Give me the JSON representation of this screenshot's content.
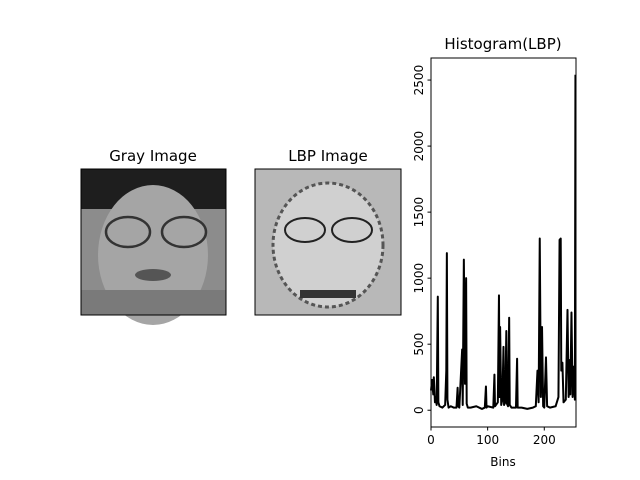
{
  "panels": [
    {
      "title": "Gray Image"
    },
    {
      "title": "LBP Image"
    }
  ],
  "chart_data": {
    "type": "line",
    "title": "Histogram(LBP)",
    "x_label": "Bins",
    "x": [
      0,
      2,
      4,
      5,
      7,
      8,
      10,
      12,
      13,
      15,
      20,
      25,
      27,
      28,
      29,
      31,
      35,
      40,
      45,
      47,
      48,
      50,
      55,
      56,
      58,
      60,
      62,
      63,
      65,
      70,
      80,
      90,
      95,
      97,
      98,
      100,
      110,
      112,
      113,
      118,
      120,
      121,
      122,
      124,
      126,
      128,
      129,
      131,
      133,
      134,
      136,
      138,
      139,
      142,
      150,
      152,
      153,
      160,
      170,
      180,
      185,
      188,
      190,
      192,
      194,
      196,
      198,
      200,
      203,
      205,
      210,
      220,
      225,
      227,
      229,
      230,
      232,
      234,
      238,
      241,
      243,
      244,
      246,
      248,
      250,
      252,
      254,
      255
    ],
    "series": [
      {
        "color": "#000000",
        "values": [
          150,
          230,
          120,
          250,
          60,
          100,
          40,
          860,
          60,
          30,
          20,
          40,
          300,
          1190,
          80,
          20,
          30,
          20,
          20,
          170,
          30,
          20,
          460,
          40,
          1140,
          200,
          1000,
          50,
          20,
          20,
          30,
          10,
          20,
          180,
          20,
          30,
          20,
          270,
          30,
          60,
          870,
          100,
          630,
          40,
          80,
          480,
          40,
          60,
          600,
          50,
          30,
          700,
          40,
          20,
          20,
          390,
          20,
          20,
          10,
          20,
          30,
          300,
          60,
          1300,
          100,
          630,
          30,
          20,
          400,
          30,
          20,
          30,
          100,
          1290,
          1300,
          300,
          360,
          60,
          80,
          760,
          100,
          380,
          120,
          740,
          100,
          330,
          80,
          2540
        ]
      }
    ],
    "xlim": [
      0,
      256
    ],
    "xticks": [
      0,
      100,
      200
    ],
    "ylim": [
      -127,
      2667
    ],
    "yticks": [
      0,
      500,
      1000,
      1500,
      2000,
      2500
    ]
  }
}
